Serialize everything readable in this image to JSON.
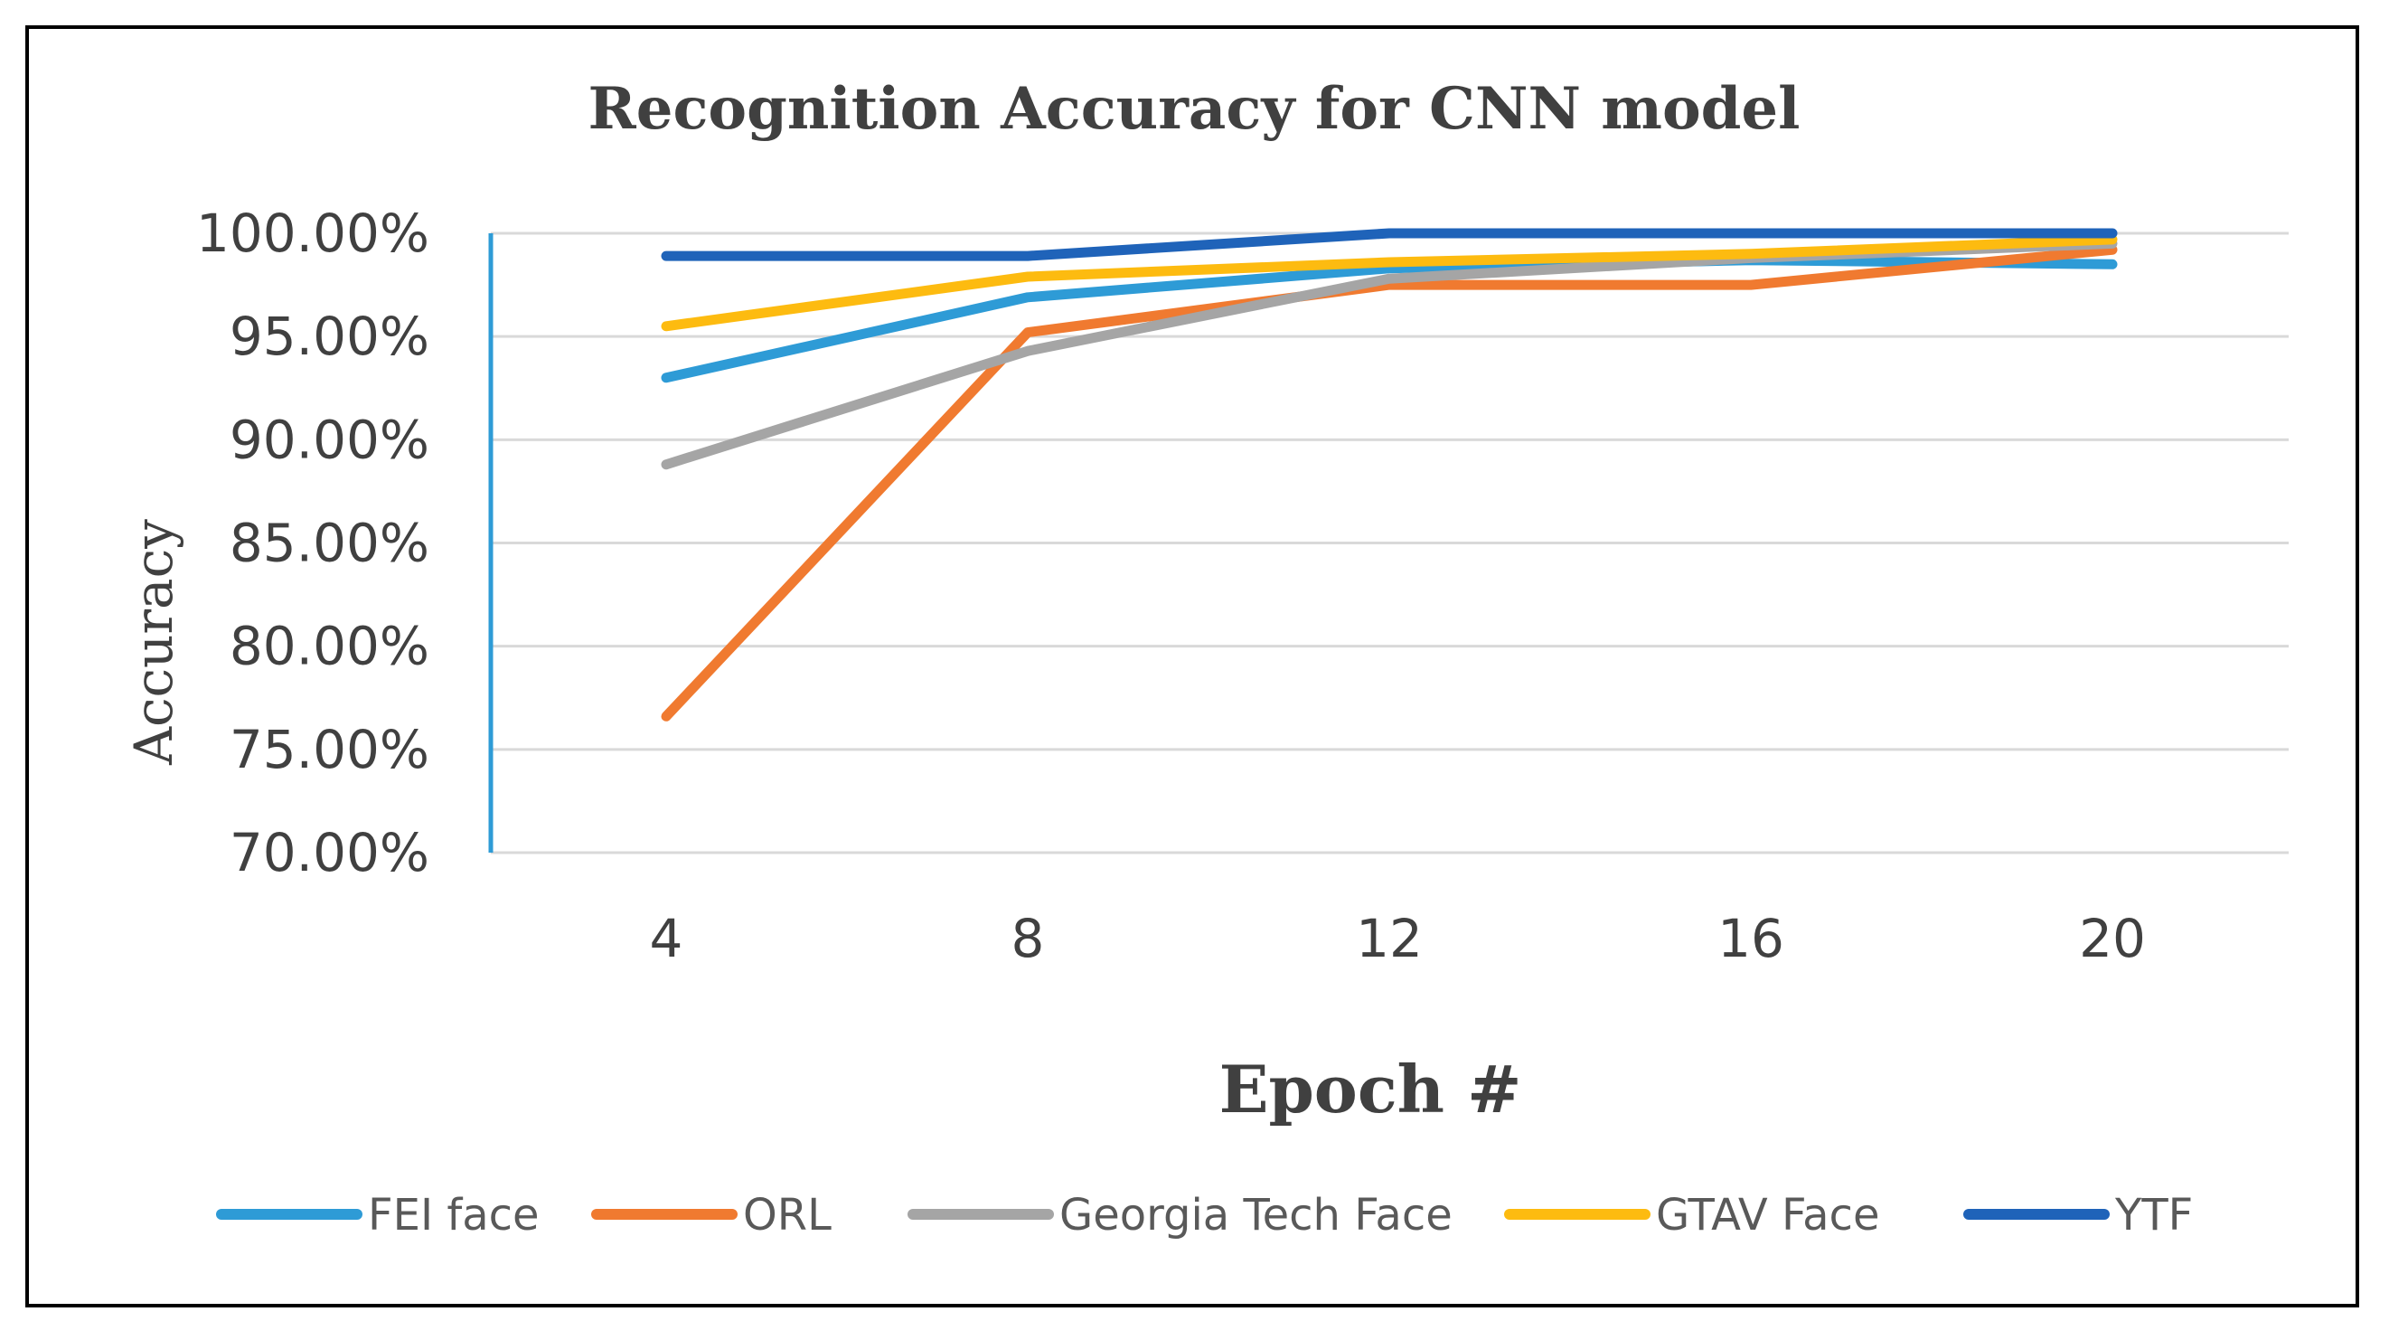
{
  "chart_data": {
    "type": "line",
    "title": "Recognition Accuracy for CNN model",
    "xlabel": "Epoch #",
    "ylabel": "Accuracy",
    "categories": [
      "4",
      "8",
      "12",
      "16",
      "20"
    ],
    "ylim": [
      0.7,
      1.0
    ],
    "yticks": [
      {
        "value": 1.0,
        "label": "100.00%"
      },
      {
        "value": 0.95,
        "label": "95.00%"
      },
      {
        "value": 0.9,
        "label": "90.00%"
      },
      {
        "value": 0.85,
        "label": "85.00%"
      },
      {
        "value": 0.8,
        "label": "80.00%"
      },
      {
        "value": 0.75,
        "label": "75.00%"
      },
      {
        "value": 0.7,
        "label": "70.00%"
      }
    ],
    "grid": true,
    "legend_position": "bottom",
    "series": [
      {
        "name": "FEI face",
        "color": "#2e9bd6",
        "values": [
          0.93,
          0.969,
          0.983,
          0.987,
          0.985
        ]
      },
      {
        "name": "ORL",
        "color": "#f07a30",
        "values": [
          0.766,
          0.952,
          0.975,
          0.975,
          0.992
        ]
      },
      {
        "name": "Georgia Tech Face",
        "color": "#a5a5a5",
        "values": [
          0.888,
          0.943,
          0.978,
          0.988,
          0.995
        ]
      },
      {
        "name": "GTAV Face",
        "color": "#fdbb10",
        "values": [
          0.955,
          0.979,
          0.986,
          0.99,
          0.997
        ]
      },
      {
        "name": "YTF",
        "color": "#1f63b9",
        "values": [
          0.989,
          0.989,
          1.0,
          1.0,
          1.0
        ]
      }
    ]
  }
}
